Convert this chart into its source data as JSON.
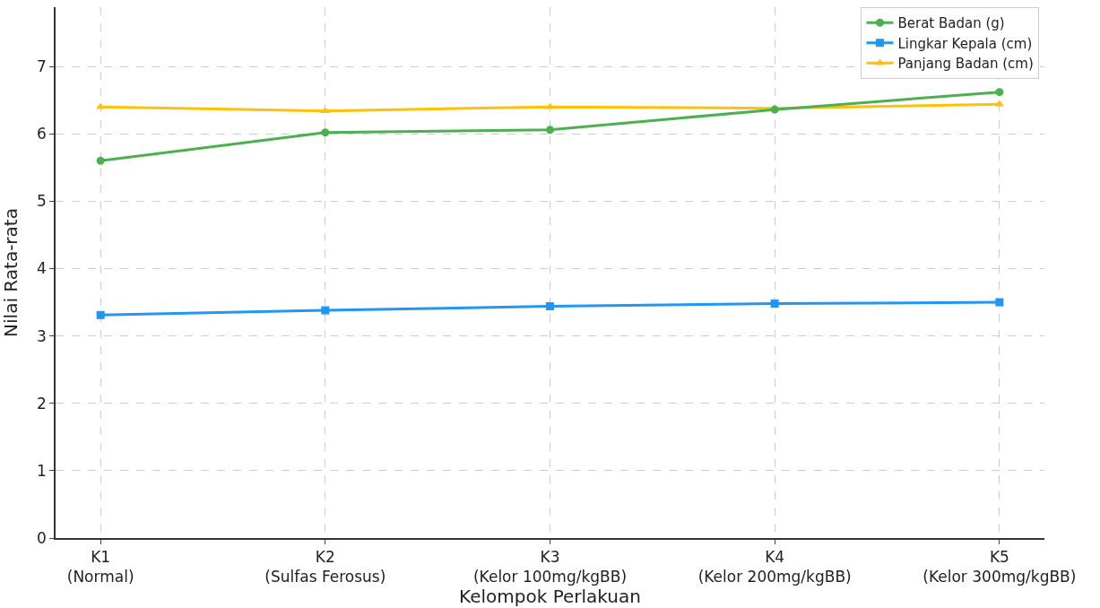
{
  "chart_data": {
    "type": "line",
    "xlabel": "Kelompok Perlakuan",
    "ylabel": "Nilai Rata-rata",
    "categories": [
      "K1\n(Normal)",
      "K2\n(Sulfas Ferosus)",
      "K3\n(Kelor 100mg/kgBB)",
      "K4\n(Kelor 200mg/kgBB)",
      "K5\n(Kelor 300mg/kgBB)"
    ],
    "series": [
      {
        "name": "Berat Badan (g)",
        "color": "#4caf50",
        "marker": "circle",
        "values": [
          5.6,
          6.02,
          6.06,
          6.36,
          6.62
        ]
      },
      {
        "name": "Lingkar Kepala (cm)",
        "color": "#2196f3",
        "marker": "square",
        "values": [
          3.31,
          3.38,
          3.44,
          3.48,
          3.5
        ]
      },
      {
        "name": "Panjang Badan (cm)",
        "color": "#ffc107",
        "marker": "triangle",
        "values": [
          6.4,
          6.34,
          6.4,
          6.38,
          6.44
        ]
      }
    ],
    "ylim": [
      0,
      7.88
    ],
    "yticks": [
      0,
      1,
      2,
      3,
      4,
      5,
      6,
      7
    ],
    "grid": true,
    "legend": "top right",
    "line_style": "solid"
  }
}
